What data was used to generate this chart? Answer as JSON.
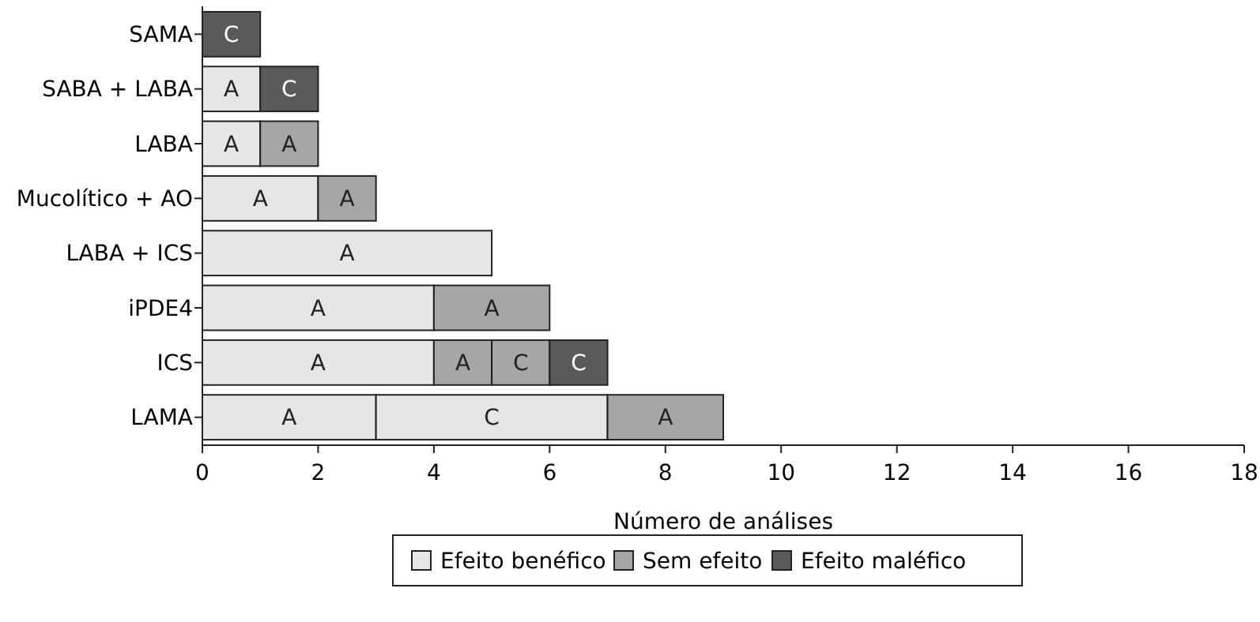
{
  "chart_data": {
    "type": "bar",
    "orientation": "horizontal",
    "stacked": true,
    "xlabel": "Número de análises",
    "categories": [
      "SAMA",
      "SABA + LABA",
      "LABA",
      "Mucolítico + AO",
      "LABA + ICS",
      "iPDE4",
      "ICS",
      "LAMA"
    ],
    "xlim": [
      0,
      18
    ],
    "xticks": [
      0,
      2,
      4,
      6,
      8,
      10,
      12,
      14,
      16,
      18
    ],
    "grid": false,
    "legend": "bottom",
    "series": [
      {
        "name": "Efeito benéfico",
        "color": "#e6e6e6",
        "values": [
          null,
          1,
          1,
          2,
          5,
          4,
          4,
          3
        ],
        "value_labels": [
          null,
          "A",
          "A",
          "A",
          "A",
          "A",
          "A",
          "A"
        ]
      },
      {
        "color": "#e6e6e6",
        "values": [
          null,
          null,
          null,
          null,
          null,
          null,
          null,
          4
        ],
        "value_labels": [
          null,
          null,
          null,
          null,
          null,
          null,
          null,
          "C"
        ]
      },
      {
        "name": "Sem efeito",
        "color": "#a6a6a6",
        "values": [
          null,
          null,
          1,
          1,
          null,
          2,
          1,
          2
        ],
        "value_labels": [
          null,
          null,
          "A",
          "A",
          null,
          "A",
          "A",
          "A"
        ]
      },
      {
        "color": "#a6a6a6",
        "values": [
          null,
          null,
          null,
          null,
          null,
          null,
          1,
          null
        ],
        "value_labels": [
          null,
          null,
          null,
          null,
          null,
          null,
          "C",
          null
        ]
      },
      {
        "name": "Efeito maléfico",
        "color": "#5a5a5a",
        "values": [
          1,
          1,
          null,
          null,
          null,
          null,
          1,
          null
        ],
        "value_labels": [
          "C",
          "C",
          null,
          null,
          null,
          null,
          "C",
          null
        ]
      }
    ]
  }
}
